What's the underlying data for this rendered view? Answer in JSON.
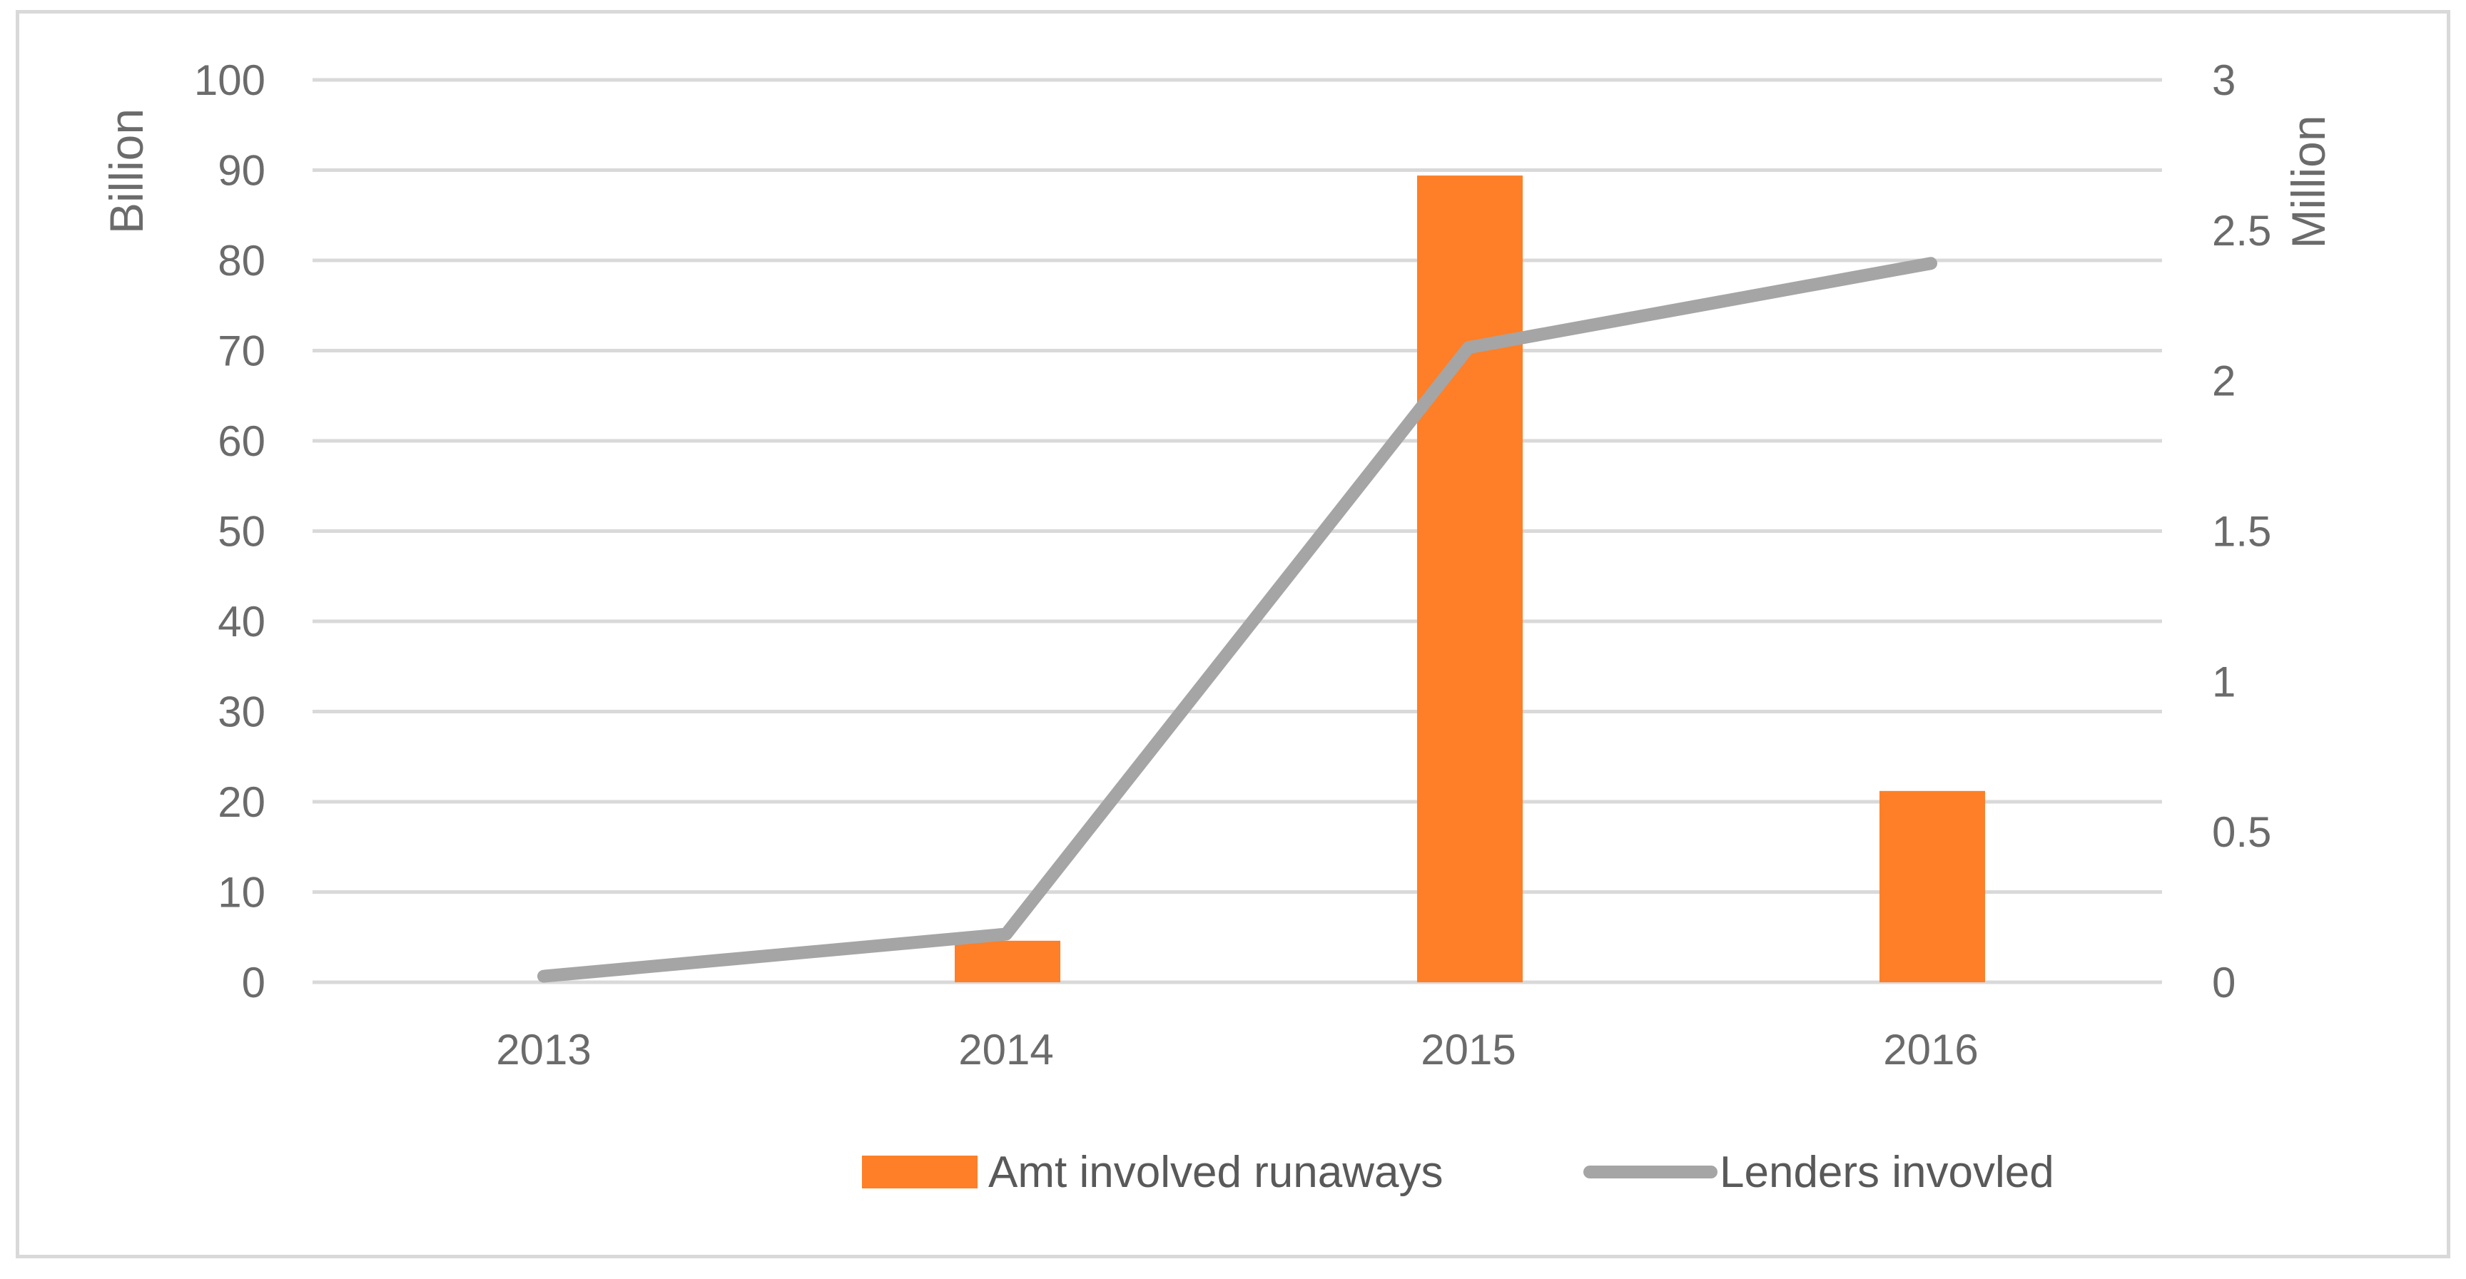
{
  "chart_data": {
    "type": "bar",
    "categories": [
      "2013",
      "2014",
      "2015",
      "2016"
    ],
    "series": [
      {
        "name": "Amt involved runaways",
        "type": "bar",
        "axis": "left",
        "values": [
          0,
          4.6,
          89.4,
          21.2
        ],
        "color": "#fe7f27"
      },
      {
        "name": "Lenders invovled",
        "type": "line",
        "axis": "right",
        "values": [
          0.02,
          0.16,
          2.11,
          2.39
        ],
        "color": "#a5a5a5"
      }
    ],
    "y_left": {
      "label": "Billion",
      "ylim": [
        0,
        100
      ],
      "ticks": [
        "0",
        "10",
        "20",
        "30",
        "40",
        "50",
        "60",
        "70",
        "80",
        "90",
        "100"
      ]
    },
    "y_right": {
      "label": "Million",
      "ylim": [
        0,
        3
      ],
      "ticks": [
        "0",
        "0.5",
        "1",
        "1.5",
        "2",
        "2.5",
        "3"
      ]
    },
    "grid": true,
    "legend_position": "bottom",
    "colors": {
      "grid": "#d9d9d9",
      "text": "#6b6b6b",
      "frame": "#d9d9d9"
    }
  }
}
